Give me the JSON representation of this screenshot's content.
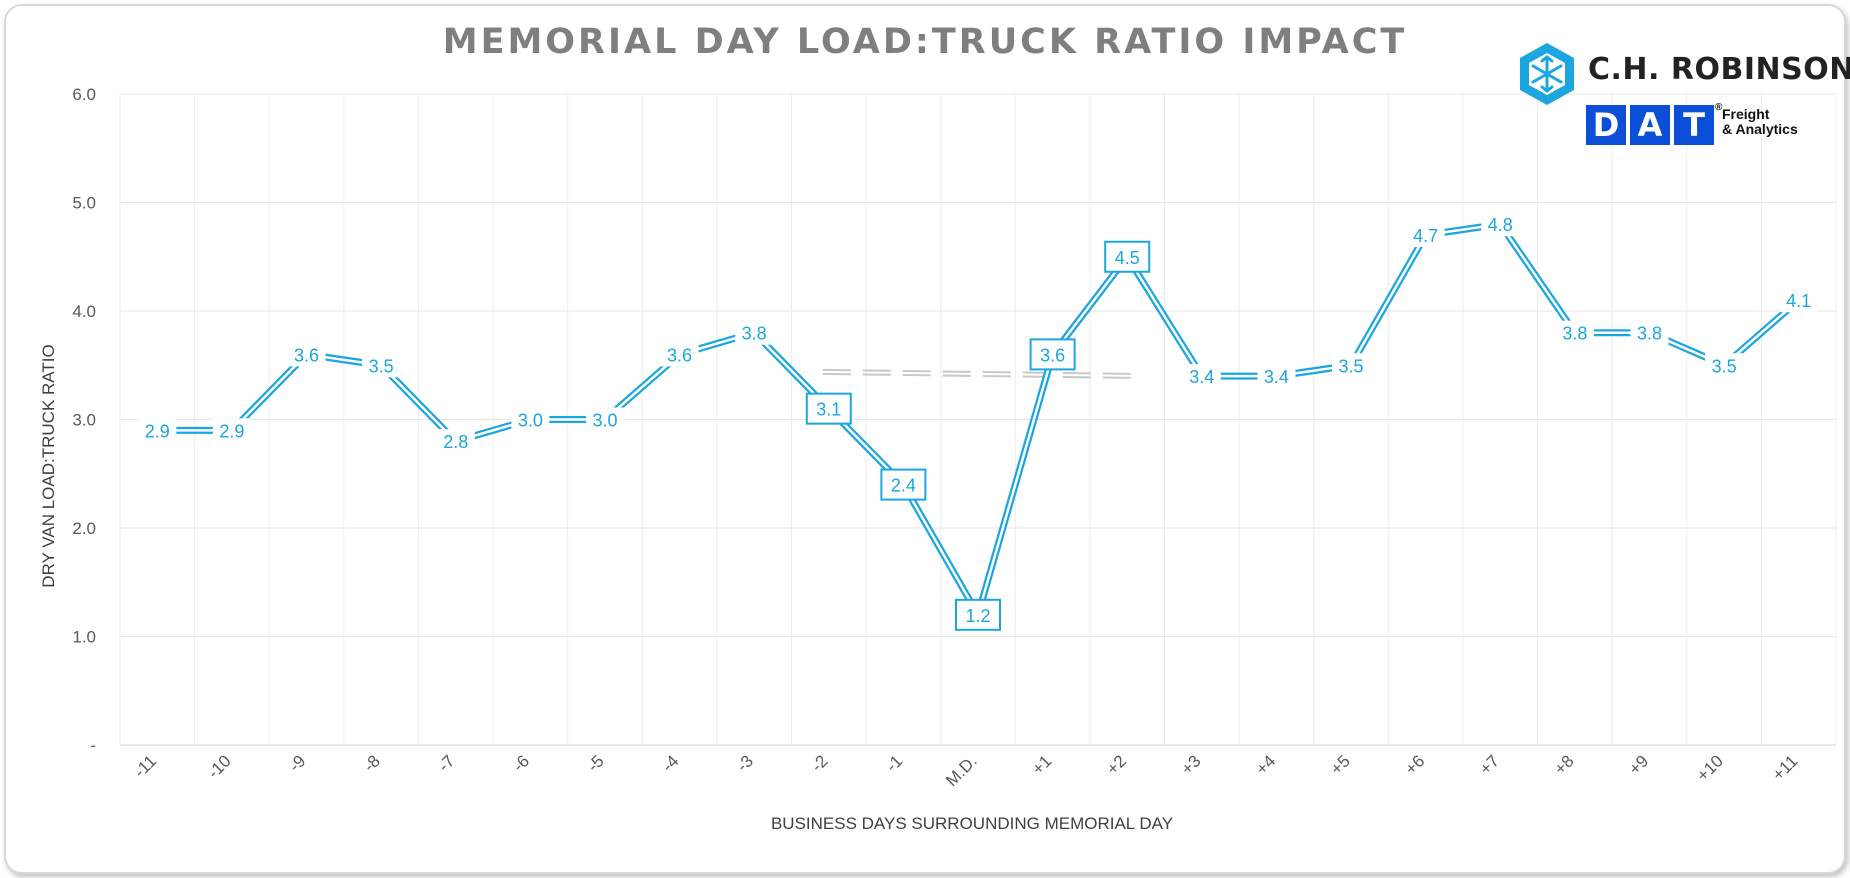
{
  "chart_data": {
    "type": "line",
    "title": "MEMORIAL DAY LOAD:TRUCK RATIO IMPACT",
    "xlabel": "BUSINESS DAYS SURROUNDING MEMORIAL DAY",
    "ylabel": "DRY VAN LOAD:TRUCK RATIO",
    "ylim": [
      0,
      6
    ],
    "yticks": [
      "-",
      "1.0",
      "2.0",
      "3.0",
      "4.0",
      "5.0",
      "6.0"
    ],
    "categories": [
      "-11",
      "-10",
      "-9",
      "-8",
      "-7",
      "-6",
      "-5",
      "-4",
      "-3",
      "-2",
      "-1",
      "M.D.",
      "+1",
      "+2",
      "+3",
      "+4",
      "+5",
      "+6",
      "+7",
      "+8",
      "+9",
      "+10",
      "+11"
    ],
    "series": [
      {
        "color": "#1ba6e0",
        "values": [
          2.9,
          2.9,
          3.6,
          3.5,
          2.8,
          3.0,
          3.0,
          3.6,
          3.8,
          3.1,
          2.4,
          1.2,
          3.6,
          4.5,
          3.4,
          3.4,
          3.5,
          4.7,
          4.8,
          3.8,
          3.8,
          3.5,
          4.1
        ],
        "labels": [
          "2.9",
          "2.9",
          "3.6",
          "3.5",
          "2.8",
          "3.0",
          "3.0",
          "3.6",
          "3.8",
          "3.1",
          "2.4",
          "1.2",
          "3.6",
          "4.5",
          "3.4",
          "3.4",
          "3.5",
          "4.7",
          "4.8",
          "3.8",
          "3.8",
          "3.5",
          "4.1"
        ],
        "boxed": [
          false,
          false,
          false,
          false,
          false,
          false,
          false,
          false,
          false,
          true,
          true,
          true,
          true,
          true,
          false,
          false,
          false,
          false,
          false,
          false,
          false,
          false,
          false
        ]
      }
    ],
    "average_line": {
      "start": "-2",
      "end": "+2",
      "value": 3.42,
      "color": "#c8c8c8"
    },
    "grid": true,
    "legend": "none"
  },
  "logos": {
    "chr": "C.H. ROBINSON",
    "dat_letters": [
      "D",
      "A",
      "T"
    ],
    "dat_sub_1": "Freight",
    "dat_sub_2": "& Analytics",
    "dat_registered": "®",
    "brand_blue": "#1ba6e0",
    "dat_blue": "#0b4fd8"
  }
}
